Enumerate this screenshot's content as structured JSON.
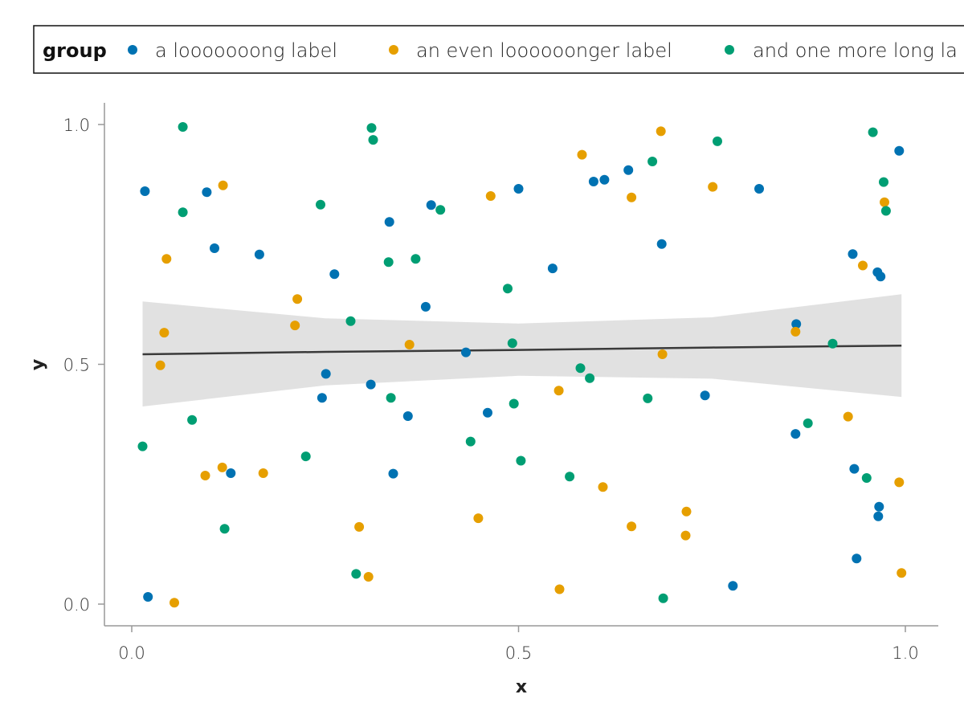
{
  "chart_data": {
    "type": "scatter",
    "title": "",
    "xlabel": "x",
    "ylabel": "y",
    "xlim": [
      -0.07,
      1.08
    ],
    "ylim": [
      -0.045,
      1.045
    ],
    "xticks": [
      0.0,
      0.5,
      1.0
    ],
    "yticks": [
      0.0,
      0.5,
      1.0
    ],
    "xtick_labels": [
      "0.0",
      "0.5",
      "1.0"
    ],
    "ytick_labels": [
      "0.0",
      "0.5",
      "1.0"
    ],
    "grid": false,
    "legend": {
      "title": "group",
      "placement": "top",
      "entries": [
        "a looooooong label",
        "an even loooooonger label",
        "and one more long la"
      ]
    },
    "series": [
      {
        "name": "a looooooong label",
        "color": "#0072B2",
        "points": [
          [
            0.017,
            0.861
          ],
          [
            0.021,
            0.015
          ],
          [
            0.097,
            0.859
          ],
          [
            0.107,
            0.742
          ],
          [
            0.128,
            0.273
          ],
          [
            0.165,
            0.729
          ],
          [
            0.246,
            0.43
          ],
          [
            0.251,
            0.48
          ],
          [
            0.262,
            0.688
          ],
          [
            0.309,
            0.458
          ],
          [
            0.333,
            0.797
          ],
          [
            0.338,
            0.272
          ],
          [
            0.357,
            0.392
          ],
          [
            0.38,
            0.62
          ],
          [
            0.387,
            0.832
          ],
          [
            0.432,
            0.525
          ],
          [
            0.46,
            0.399
          ],
          [
            0.5,
            0.866
          ],
          [
            0.544,
            0.7
          ],
          [
            0.597,
            0.881
          ],
          [
            0.611,
            0.885
          ],
          [
            0.642,
            0.905
          ],
          [
            0.685,
            0.751
          ],
          [
            0.741,
            0.435
          ],
          [
            0.777,
            0.038
          ],
          [
            0.811,
            0.866
          ],
          [
            0.858,
            0.355
          ],
          [
            0.859,
            0.584
          ],
          [
            0.932,
            0.73
          ],
          [
            0.934,
            0.282
          ],
          [
            0.937,
            0.095
          ],
          [
            0.964,
            0.692
          ],
          [
            0.965,
            0.183
          ],
          [
            0.968,
            0.683
          ],
          [
            0.966,
            0.203
          ],
          [
            0.992,
            0.945
          ]
        ]
      },
      {
        "name": "an even loooooonger label",
        "color": "#E69F00",
        "points": [
          [
            0.037,
            0.498
          ],
          [
            0.042,
            0.566
          ],
          [
            0.045,
            0.72
          ],
          [
            0.055,
            0.003
          ],
          [
            0.095,
            0.268
          ],
          [
            0.118,
            0.873
          ],
          [
            0.117,
            0.285
          ],
          [
            0.17,
            0.273
          ],
          [
            0.211,
            0.581
          ],
          [
            0.214,
            0.636
          ],
          [
            0.294,
            0.161
          ],
          [
            0.306,
            0.057
          ],
          [
            0.359,
            0.541
          ],
          [
            0.448,
            0.179
          ],
          [
            0.464,
            0.851
          ],
          [
            0.553,
            0.031
          ],
          [
            0.552,
            0.445
          ],
          [
            0.582,
            0.937
          ],
          [
            0.609,
            0.244
          ],
          [
            0.646,
            0.848
          ],
          [
            0.646,
            0.162
          ],
          [
            0.684,
            0.986
          ],
          [
            0.686,
            0.521
          ],
          [
            0.717,
            0.193
          ],
          [
            0.716,
            0.143
          ],
          [
            0.751,
            0.87
          ],
          [
            0.858,
            0.568
          ],
          [
            0.926,
            0.391
          ],
          [
            0.945,
            0.706
          ],
          [
            0.992,
            0.254
          ],
          [
            0.995,
            0.065
          ],
          [
            0.973,
            0.838
          ]
        ]
      },
      {
        "name": "and one more long la",
        "color": "#009E73",
        "points": [
          [
            0.014,
            0.329
          ],
          [
            0.066,
            0.995
          ],
          [
            0.066,
            0.817
          ],
          [
            0.078,
            0.384
          ],
          [
            0.12,
            0.157
          ],
          [
            0.225,
            0.308
          ],
          [
            0.244,
            0.833
          ],
          [
            0.283,
            0.59
          ],
          [
            0.29,
            0.063
          ],
          [
            0.31,
            0.993
          ],
          [
            0.312,
            0.968
          ],
          [
            0.332,
            0.713
          ],
          [
            0.335,
            0.43
          ],
          [
            0.367,
            0.72
          ],
          [
            0.399,
            0.822
          ],
          [
            0.438,
            0.339
          ],
          [
            0.486,
            0.658
          ],
          [
            0.492,
            0.544
          ],
          [
            0.494,
            0.418
          ],
          [
            0.503,
            0.299
          ],
          [
            0.566,
            0.266
          ],
          [
            0.58,
            0.492
          ],
          [
            0.592,
            0.471
          ],
          [
            0.667,
            0.429
          ],
          [
            0.673,
            0.923
          ],
          [
            0.687,
            0.012
          ],
          [
            0.757,
            0.965
          ],
          [
            0.874,
            0.377
          ],
          [
            0.906,
            0.543
          ],
          [
            0.95,
            0.263
          ],
          [
            0.958,
            0.984
          ],
          [
            0.972,
            0.88
          ],
          [
            0.975,
            0.82
          ]
        ]
      }
    ],
    "trend_line": {
      "color": "#3a3a3a",
      "band_color": "#dcdcdc",
      "x": [
        0.014,
        0.25,
        0.5,
        0.75,
        0.995
      ],
      "y": [
        0.521,
        0.526,
        0.53,
        0.535,
        0.539
      ],
      "lower": [
        0.412,
        0.456,
        0.476,
        0.47,
        0.432
      ],
      "upper": [
        0.631,
        0.596,
        0.585,
        0.598,
        0.646
      ]
    }
  }
}
